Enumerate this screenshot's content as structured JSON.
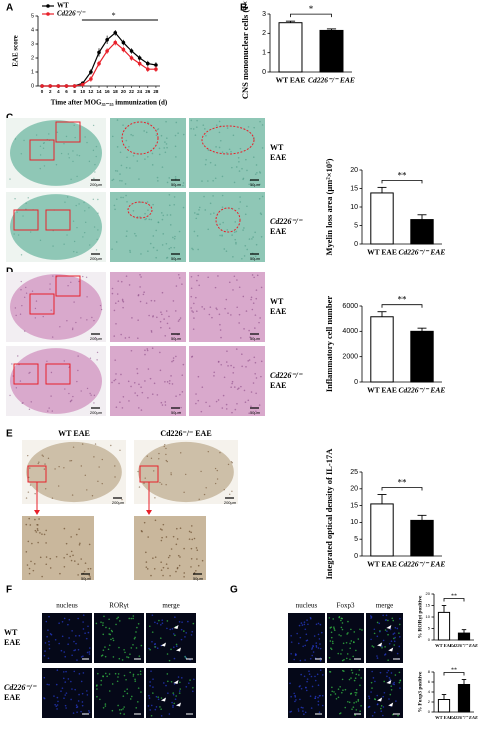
{
  "figure": {
    "panel_letters": [
      "A",
      "B",
      "C",
      "D",
      "E",
      "F",
      "G"
    ],
    "C": {
      "rows": [
        [
          "WT",
          "EAE"
        ],
        [
          "Cd226⁻/⁻",
          "EAE"
        ]
      ],
      "scales": [
        "200μm",
        "50μm",
        "50μm",
        "200μm",
        "50μm",
        "50μm"
      ]
    },
    "D": {
      "rows": [
        [
          "WT",
          "EAE"
        ],
        [
          "Cd226⁻/⁻",
          "EAE"
        ]
      ],
      "scales": [
        "200μm",
        "50μm",
        "50μm",
        "200μm",
        "50μm",
        "50μm"
      ]
    },
    "E": {
      "titles": [
        "WT EAE",
        "Cd226⁻/⁻ EAE"
      ],
      "scales": [
        "200μm",
        "200μm",
        "50μm",
        "50μm"
      ]
    },
    "F": {
      "columns": [
        "nucleus",
        "RORγt",
        "merge"
      ],
      "rows": [
        [
          "WT",
          "EAE"
        ],
        [
          "Cd226⁻/⁻",
          "EAE"
        ]
      ]
    },
    "G": {
      "columns": [
        "nucleus",
        "Foxp3",
        "merge"
      ]
    }
  },
  "chart_data": [
    {
      "type": "line",
      "xlabel": "Time after MOG₃₅₋₅₅ immunization (d)",
      "ylabel": "EAE score",
      "x": [
        0,
        2,
        4,
        6,
        8,
        10,
        12,
        14,
        16,
        18,
        20,
        22,
        24,
        26,
        28
      ],
      "xlim": [
        -1,
        29
      ],
      "xticks": [
        0,
        2,
        4,
        6,
        8,
        10,
        12,
        14,
        16,
        18,
        20,
        22,
        24,
        26,
        28
      ],
      "ylim": [
        0,
        5
      ],
      "yticks": [
        0,
        1,
        2,
        3,
        4,
        5
      ],
      "legend": "upper left",
      "annotation": "*",
      "series": [
        {
          "name": "WT",
          "color": "#000000",
          "values": [
            0,
            0,
            0,
            0,
            0,
            0.2,
            1.0,
            2.4,
            3.3,
            3.8,
            3.1,
            2.5,
            2.0,
            1.6,
            1.5
          ],
          "errors": [
            0,
            0,
            0,
            0,
            0,
            0.1,
            0.2,
            0.3,
            0.3,
            0.2,
            0.2,
            0.2,
            0.2,
            0.2,
            0.2
          ]
        },
        {
          "name": "Cd226⁻/⁻",
          "color": "#e8202a",
          "values": [
            0,
            0,
            0,
            0,
            0,
            0.1,
            0.5,
            1.6,
            2.5,
            3.1,
            2.6,
            2.0,
            1.6,
            1.2,
            1.2
          ],
          "errors": [
            0,
            0,
            0,
            0,
            0,
            0.1,
            0.2,
            0.2,
            0.2,
            0.2,
            0.2,
            0.2,
            0.2,
            0.2,
            0.2
          ]
        }
      ]
    },
    {
      "type": "bar",
      "ylabel": "CNS mononuclear cells (1×10⁶)",
      "categories": [
        "WT EAE",
        "Cd226⁻/⁻ EAE"
      ],
      "values": [
        2.55,
        2.15
      ],
      "errors": [
        0.08,
        0.08
      ],
      "colors": [
        "#ffffff",
        "#000000"
      ],
      "ylim": [
        0,
        3
      ],
      "yticks": [
        0,
        1,
        2,
        3
      ],
      "annotation": "*"
    },
    {
      "type": "bar",
      "ylabel": "Myelin loss area (μm²×10⁵)",
      "categories": [
        "WT EAE",
        "Cd226⁻/⁻ EAE"
      ],
      "values": [
        13.8,
        6.6
      ],
      "errors": [
        1.5,
        1.3
      ],
      "colors": [
        "#ffffff",
        "#000000"
      ],
      "ylim": [
        0,
        20
      ],
      "yticks": [
        0,
        5,
        10,
        15,
        20
      ],
      "annotation": "**"
    },
    {
      "type": "bar",
      "ylabel": "Inflammatory cell number",
      "categories": [
        "WT EAE",
        "Cd226⁻/⁻ EAE"
      ],
      "values": [
        5150,
        4000
      ],
      "errors": [
        400,
        250
      ],
      "colors": [
        "#ffffff",
        "#000000"
      ],
      "ylim": [
        0,
        6000
      ],
      "yticks": [
        0,
        2000,
        4000,
        6000
      ],
      "annotation": "**"
    },
    {
      "type": "bar",
      "ylabel": "Integrated optical density of IL-17A",
      "categories": [
        "WT EAE",
        "Cd226⁻/⁻ EAE"
      ],
      "values": [
        15.5,
        10.6
      ],
      "errors": [
        2.8,
        1.5
      ],
      "colors": [
        "#ffffff",
        "#000000"
      ],
      "ylim": [
        0,
        25
      ],
      "yticks": [
        0,
        5,
        10,
        15,
        20,
        25
      ],
      "annotation": "**"
    },
    {
      "type": "bar",
      "ylabel": "% RORγt positive",
      "categories": [
        "WT EAE",
        "Cd226⁻/⁻ EAE"
      ],
      "values": [
        12,
        3
      ],
      "errors": [
        3,
        1.5
      ],
      "colors": [
        "#ffffff",
        "#000000"
      ],
      "ylim": [
        0,
        20
      ],
      "yticks": [
        0,
        5,
        10,
        15,
        20
      ],
      "annotation": "**"
    },
    {
      "type": "bar",
      "ylabel": "% Foxp3 positive",
      "categories": [
        "WT EAE",
        "Cd226⁻/⁻ EAE"
      ],
      "values": [
        2.5,
        5.5
      ],
      "errors": [
        1,
        1
      ],
      "colors": [
        "#ffffff",
        "#000000"
      ],
      "ylim": [
        0,
        8
      ],
      "yticks": [
        0,
        2,
        4,
        6,
        8
      ],
      "annotation": "**"
    }
  ]
}
